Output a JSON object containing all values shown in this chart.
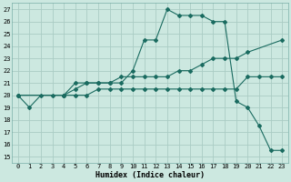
{
  "xlabel": "Humidex (Indice chaleur)",
  "bg_color": "#cce8e0",
  "grid_color": "#aaccc4",
  "line_color": "#1a6b60",
  "xlim": [
    -0.5,
    23.5
  ],
  "ylim": [
    14.5,
    27.5
  ],
  "yticks": [
    15,
    16,
    17,
    18,
    19,
    20,
    21,
    22,
    23,
    24,
    25,
    26,
    27
  ],
  "xticks": [
    0,
    1,
    2,
    3,
    4,
    5,
    6,
    7,
    8,
    9,
    10,
    11,
    12,
    13,
    14,
    15,
    16,
    17,
    18,
    19,
    20,
    21,
    22,
    23
  ],
  "line1_x": [
    0,
    1,
    2,
    3,
    4,
    5,
    6,
    7,
    8,
    9,
    10,
    11,
    12,
    13,
    14,
    15,
    16,
    17,
    18,
    19,
    20,
    21,
    22,
    23
  ],
  "line1_y": [
    20,
    19,
    20,
    20,
    20,
    21,
    21,
    21,
    21,
    21,
    22,
    24.5,
    24.5,
    27,
    26.5,
    26.5,
    26.5,
    26,
    26,
    19.5,
    19,
    17.5,
    15.5,
    15.5
  ],
  "line2_x": [
    0,
    4,
    5,
    6,
    7,
    8,
    9,
    10,
    11,
    12,
    13,
    14,
    15,
    16,
    17,
    18,
    19,
    20,
    23
  ],
  "line2_y": [
    20,
    20,
    20.5,
    21,
    21,
    21,
    21.5,
    21.5,
    21.5,
    21.5,
    21.5,
    22,
    22,
    22.5,
    23,
    23,
    23,
    23.5,
    24.5
  ],
  "line3_x": [
    0,
    4,
    5,
    6,
    7,
    8,
    9,
    10,
    11,
    12,
    13,
    14,
    15,
    16,
    17,
    18,
    19,
    20,
    21,
    22,
    23
  ],
  "line3_y": [
    20,
    20,
    20,
    20,
    20.5,
    20.5,
    20.5,
    20.5,
    20.5,
    20.5,
    20.5,
    20.5,
    20.5,
    20.5,
    20.5,
    20.5,
    20.5,
    21.5,
    21.5,
    21.5,
    21.5
  ]
}
